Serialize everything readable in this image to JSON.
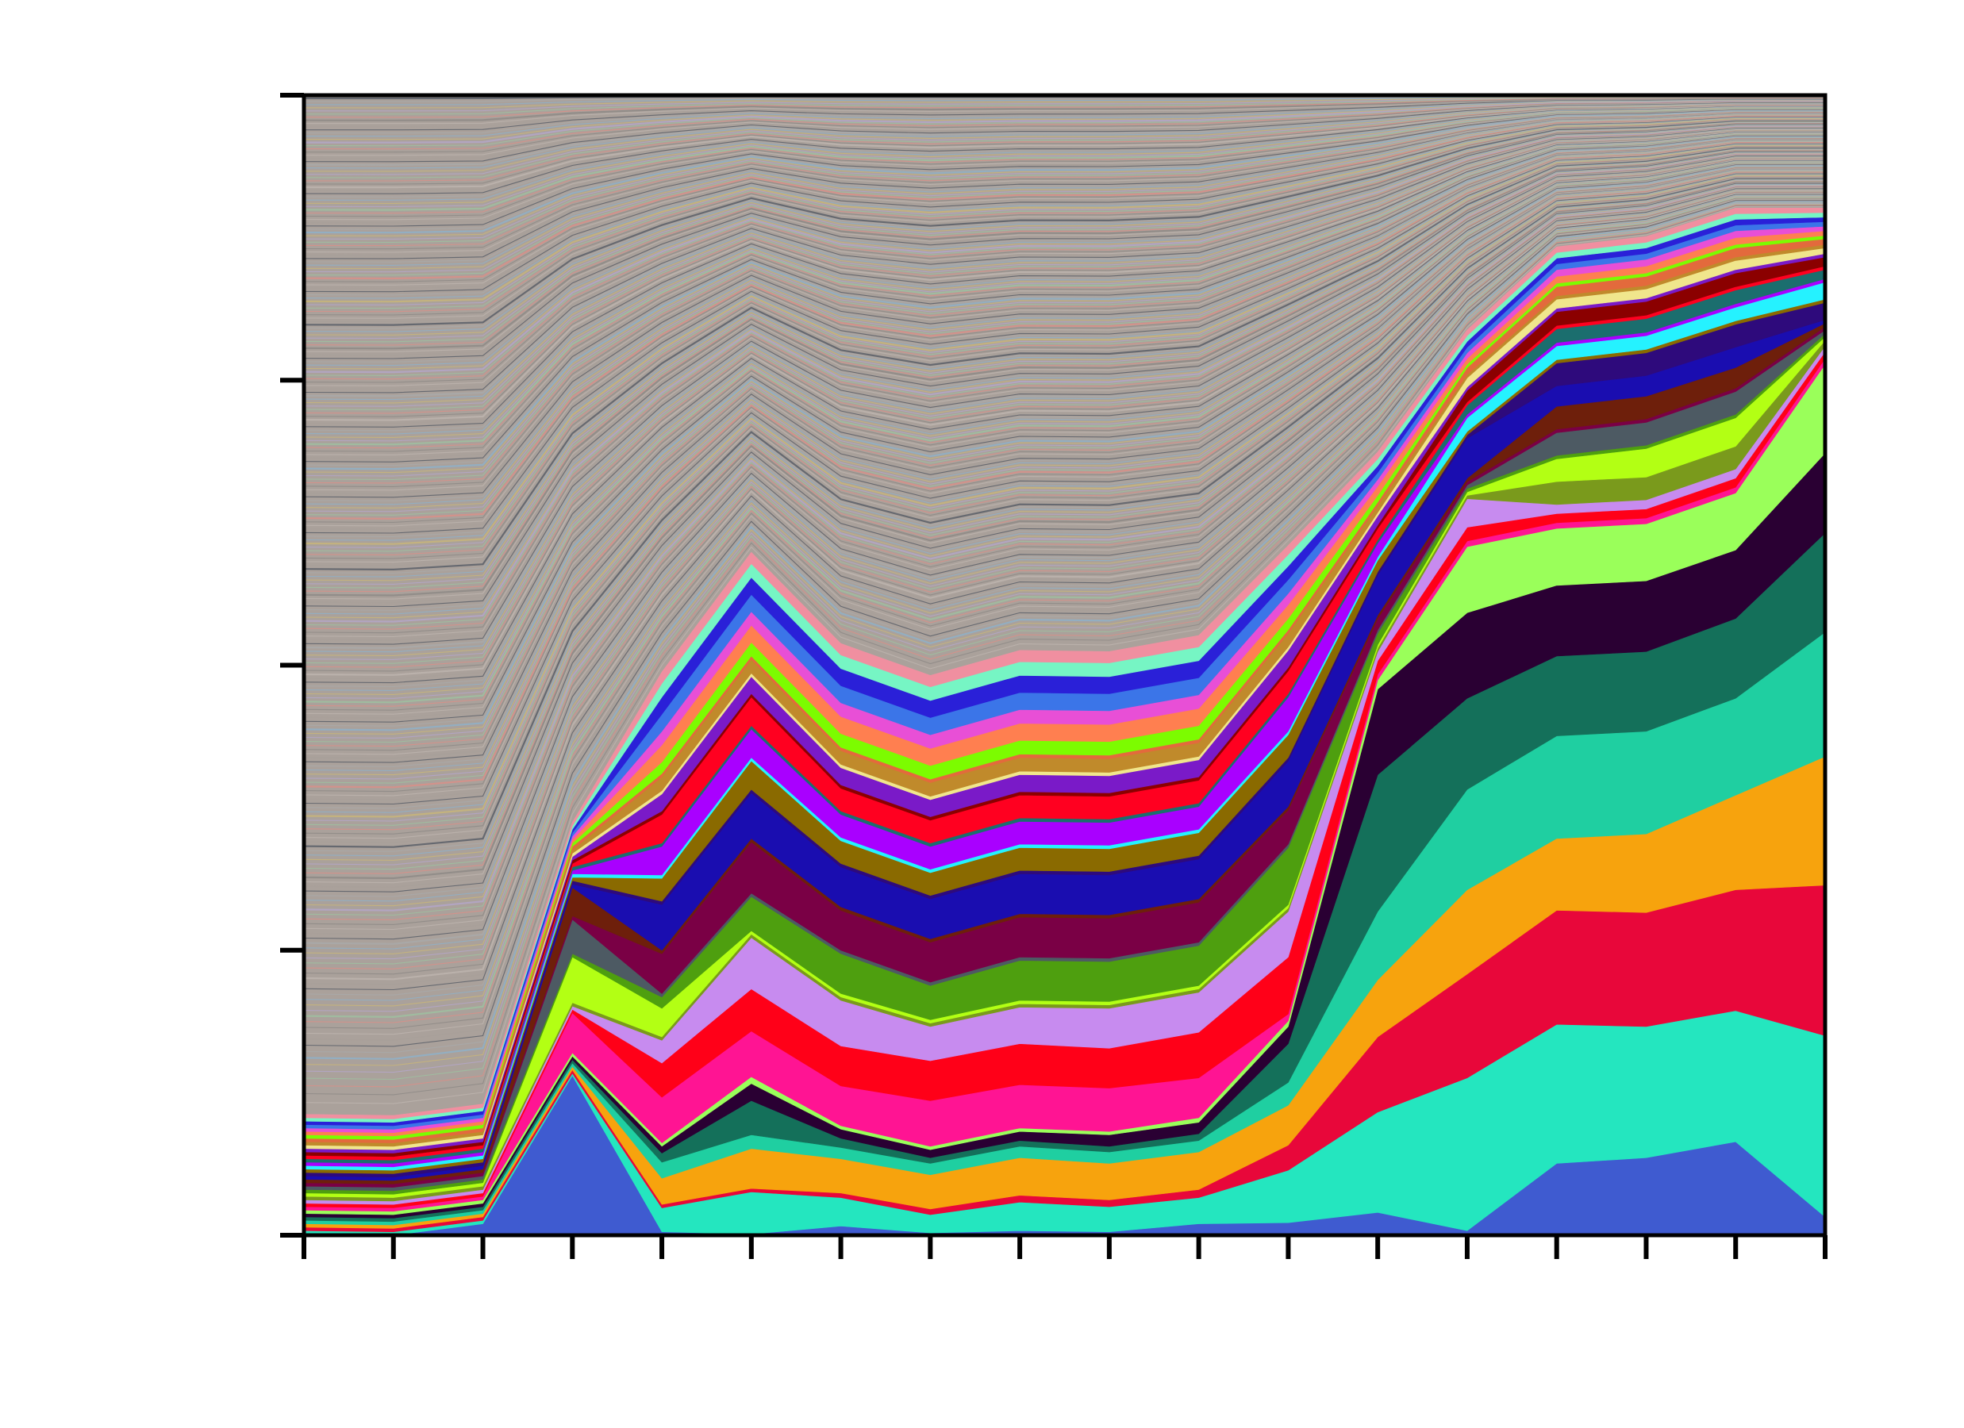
{
  "chart_data": {
    "type": "area",
    "stacked": true,
    "normalized": true,
    "title": "",
    "xlabel": "",
    "ylabel": "",
    "x": [
      0,
      1,
      2,
      3,
      4,
      5,
      6,
      7,
      8,
      9,
      10,
      11,
      12,
      13,
      14,
      15,
      16,
      17
    ],
    "ylim": [
      0,
      1
    ],
    "y_ticks": [
      0,
      0.25,
      0.5,
      0.75,
      1.0
    ],
    "grid": false,
    "legend": "none",
    "series": [
      {
        "color": "#3f5bd0",
        "values": [
          0,
          0,
          0.01,
          0.14,
          0.003,
          0.001,
          0.008,
          0.002,
          0.004,
          0.003,
          0.01,
          0.011,
          0.02,
          0.004,
          0.063,
          0.068,
          0.082,
          0.016
        ]
      },
      {
        "color": "#24e6bf",
        "values": [
          0.004,
          0.003,
          0.003,
          0.002,
          0.021,
          0.037,
          0.025,
          0.016,
          0.025,
          0.022,
          0.023,
          0.046,
          0.088,
          0.134,
          0.122,
          0.115,
          0.115,
          0.159
        ]
      },
      {
        "color": "#e8073a",
        "values": [
          0.003,
          0.003,
          0.003,
          0.003,
          0.003,
          0.003,
          0.004,
          0.005,
          0.006,
          0.006,
          0.007,
          0.022,
          0.066,
          0.091,
          0.1,
          0.1,
          0.106,
          0.132
        ]
      },
      {
        "color": "#f7a30d",
        "values": [
          0.003,
          0.003,
          0.003,
          0.003,
          0.023,
          0.035,
          0.03,
          0.03,
          0.033,
          0.032,
          0.033,
          0.035,
          0.05,
          0.074,
          0.063,
          0.069,
          0.083,
          0.113
        ]
      },
      {
        "color": "#1fcfa1",
        "values": [
          0.003,
          0.003,
          0.003,
          0.003,
          0.014,
          0.012,
          0.01,
          0.01,
          0.01,
          0.01,
          0.01,
          0.02,
          0.06,
          0.088,
          0.09,
          0.09,
          0.085,
          0.109
        ]
      },
      {
        "color": "#14705a",
        "values": [
          0.003,
          0.003,
          0.003,
          0.003,
          0.008,
          0.03,
          0.008,
          0.005,
          0.005,
          0.005,
          0.006,
          0.034,
          0.12,
          0.08,
          0.07,
          0.07,
          0.07,
          0.087
        ]
      },
      {
        "color": "#2a0033",
        "values": [
          0.003,
          0.003,
          0.003,
          0.003,
          0.006,
          0.015,
          0.008,
          0.007,
          0.008,
          0.01,
          0.01,
          0.015,
          0.075,
          0.075,
          0.062,
          0.062,
          0.06,
          0.07
        ]
      },
      {
        "color": "#9aff5a",
        "values": [
          0.003,
          0.003,
          0.003,
          0.003,
          0.003,
          0.006,
          0.003,
          0.003,
          0.003,
          0.003,
          0.004,
          0.005,
          0.008,
          0.058,
          0.05,
          0.05,
          0.05,
          0.078
        ]
      },
      {
        "color": "#ff1493",
        "values": [
          0.003,
          0.003,
          0.003,
          0.035,
          0.04,
          0.04,
          0.035,
          0.04,
          0.038,
          0.038,
          0.035,
          0.006,
          0.005,
          0.005,
          0.005,
          0.005,
          0.005,
          0.005
        ]
      },
      {
        "color": "#ff0018",
        "values": [
          0.003,
          0.003,
          0.003,
          0.003,
          0.03,
          0.037,
          0.035,
          0.035,
          0.036,
          0.035,
          0.04,
          0.05,
          0.012,
          0.012,
          0.008,
          0.008,
          0.008,
          0.006
        ]
      },
      {
        "color": "#c78bef",
        "values": [
          0.003,
          0.003,
          0.003,
          0.003,
          0.02,
          0.045,
          0.04,
          0.03,
          0.032,
          0.035,
          0.035,
          0.04,
          0.008,
          0.025,
          0.008,
          0.008,
          0.008,
          0.005
        ]
      },
      {
        "color": "#7a9a1c",
        "values": [
          0.003,
          0.003,
          0.003,
          0.003,
          0.003,
          0.003,
          0.003,
          0.003,
          0.003,
          0.003,
          0.003,
          0.003,
          0.003,
          0.003,
          0.02,
          0.02,
          0.02,
          0.005
        ]
      },
      {
        "color": "#b3ff14",
        "values": [
          0.003,
          0.003,
          0.003,
          0.04,
          0.025,
          0.003,
          0.003,
          0.003,
          0.003,
          0.003,
          0.003,
          0.003,
          0.003,
          0.003,
          0.02,
          0.025,
          0.025,
          0.003
        ]
      },
      {
        "color": "#4e9f0f",
        "values": [
          0.003,
          0.003,
          0.003,
          0.003,
          0.01,
          0.03,
          0.035,
          0.03,
          0.035,
          0.035,
          0.035,
          0.05,
          0.01,
          0.003,
          0.003,
          0.003,
          0.003,
          0.003
        ]
      },
      {
        "color": "#4d5a63",
        "values": [
          0.003,
          0.003,
          0.003,
          0.03,
          0.003,
          0.003,
          0.003,
          0.003,
          0.003,
          0.003,
          0.003,
          0.003,
          0.003,
          0.003,
          0.02,
          0.02,
          0.02,
          0.003
        ]
      },
      {
        "color": "#7a0045",
        "values": [
          0.003,
          0.003,
          0.003,
          0.003,
          0.035,
          0.045,
          0.035,
          0.035,
          0.035,
          0.035,
          0.035,
          0.03,
          0.01,
          0.003,
          0.003,
          0.003,
          0.003,
          0.003
        ]
      },
      {
        "color": "#6e1f0b",
        "values": [
          0.003,
          0.003,
          0.003,
          0.025,
          0.003,
          0.003,
          0.003,
          0.003,
          0.003,
          0.003,
          0.003,
          0.003,
          0.003,
          0.003,
          0.02,
          0.02,
          0.018,
          0.003
        ]
      },
      {
        "color": "#1a0db0",
        "values": [
          0.003,
          0.003,
          0.003,
          0.003,
          0.04,
          0.04,
          0.035,
          0.035,
          0.035,
          0.035,
          0.035,
          0.04,
          0.035,
          0.035,
          0.018,
          0.018,
          0.018,
          0.003
        ]
      },
      {
        "color": "#2e0a7c",
        "values": [
          0.003,
          0.003,
          0.003,
          0.003,
          0.003,
          0.003,
          0.003,
          0.003,
          0.003,
          0.003,
          0.003,
          0.003,
          0.003,
          0.003,
          0.02,
          0.02,
          0.02,
          0.015
        ]
      },
      {
        "color": "#8a6a00",
        "values": [
          0.003,
          0.003,
          0.003,
          0.003,
          0.02,
          0.025,
          0.02,
          0.02,
          0.02,
          0.02,
          0.02,
          0.02,
          0.01,
          0.003,
          0.003,
          0.003,
          0.003,
          0.003
        ]
      },
      {
        "color": "#25f2ff",
        "values": [
          0.003,
          0.003,
          0.003,
          0.003,
          0.003,
          0.003,
          0.003,
          0.003,
          0.003,
          0.003,
          0.003,
          0.003,
          0.003,
          0.012,
          0.012,
          0.012,
          0.012,
          0.015
        ]
      },
      {
        "color": "#a900ff",
        "values": [
          0.003,
          0.003,
          0.003,
          0.003,
          0.025,
          0.025,
          0.02,
          0.02,
          0.02,
          0.02,
          0.02,
          0.03,
          0.012,
          0.003,
          0.003,
          0.003,
          0.003,
          0.003
        ]
      },
      {
        "color": "#1b6e6e",
        "values": [
          0.003,
          0.003,
          0.003,
          0.003,
          0.003,
          0.003,
          0.003,
          0.003,
          0.003,
          0.003,
          0.003,
          0.003,
          0.003,
          0.008,
          0.012,
          0.012,
          0.012,
          0.008
        ]
      },
      {
        "color": "#ff0020",
        "values": [
          0.003,
          0.003,
          0.003,
          0.003,
          0.025,
          0.025,
          0.02,
          0.02,
          0.02,
          0.02,
          0.02,
          0.02,
          0.01,
          0.003,
          0.003,
          0.003,
          0.003,
          0.003
        ]
      },
      {
        "color": "#8b0000",
        "values": [
          0.003,
          0.003,
          0.003,
          0.003,
          0.003,
          0.003,
          0.003,
          0.003,
          0.003,
          0.003,
          0.003,
          0.003,
          0.003,
          0.01,
          0.012,
          0.012,
          0.012,
          0.008
        ]
      },
      {
        "color": "#7a1ac8",
        "values": [
          0.003,
          0.003,
          0.003,
          0.003,
          0.015,
          0.015,
          0.015,
          0.015,
          0.015,
          0.015,
          0.015,
          0.015,
          0.008,
          0.003,
          0.003,
          0.003,
          0.003,
          0.003
        ]
      },
      {
        "color": "#f0e68c",
        "values": [
          0.003,
          0.003,
          0.003,
          0.003,
          0.003,
          0.003,
          0.003,
          0.003,
          0.003,
          0.003,
          0.003,
          0.003,
          0.003,
          0.008,
          0.008,
          0.008,
          0.008,
          0.005
        ]
      },
      {
        "color": "#c08a2b",
        "values": [
          0.003,
          0.003,
          0.003,
          0.003,
          0.012,
          0.012,
          0.012,
          0.012,
          0.012,
          0.012,
          0.012,
          0.012,
          0.006,
          0.003,
          0.003,
          0.003,
          0.003,
          0.003
        ]
      },
      {
        "color": "#e36a3c",
        "values": [
          0.003,
          0.003,
          0.003,
          0.003,
          0.003,
          0.003,
          0.003,
          0.003,
          0.003,
          0.003,
          0.003,
          0.003,
          0.003,
          0.006,
          0.008,
          0.008,
          0.008,
          0.005
        ]
      },
      {
        "color": "#7cfc00",
        "values": [
          0.003,
          0.003,
          0.003,
          0.003,
          0.01,
          0.012,
          0.012,
          0.012,
          0.012,
          0.012,
          0.012,
          0.01,
          0.006,
          0.003,
          0.003,
          0.003,
          0.003,
          0.003
        ]
      },
      {
        "color": "#ff7f50",
        "values": [
          0.003,
          0.003,
          0.003,
          0.003,
          0.015,
          0.015,
          0.015,
          0.015,
          0.015,
          0.015,
          0.015,
          0.012,
          0.008,
          0.005,
          0.006,
          0.006,
          0.006,
          0.004
        ]
      },
      {
        "color": "#e84fd6",
        "values": [
          0.003,
          0.003,
          0.003,
          0.003,
          0.012,
          0.012,
          0.012,
          0.012,
          0.012,
          0.012,
          0.012,
          0.01,
          0.006,
          0.005,
          0.006,
          0.006,
          0.006,
          0.004
        ]
      },
      {
        "color": "#3b75e8",
        "values": [
          0.003,
          0.003,
          0.003,
          0.003,
          0.015,
          0.015,
          0.015,
          0.015,
          0.015,
          0.015,
          0.015,
          0.012,
          0.006,
          0.005,
          0.005,
          0.005,
          0.005,
          0.004
        ]
      },
      {
        "color": "#2a20d8",
        "values": [
          0.003,
          0.003,
          0.003,
          0.003,
          0.015,
          0.015,
          0.015,
          0.015,
          0.015,
          0.015,
          0.015,
          0.012,
          0.006,
          0.005,
          0.005,
          0.005,
          0.005,
          0.004
        ]
      },
      {
        "color": "#76f5c4",
        "values": [
          0.003,
          0.003,
          0.003,
          0.003,
          0.012,
          0.012,
          0.012,
          0.012,
          0.012,
          0.012,
          0.012,
          0.01,
          0.006,
          0.005,
          0.005,
          0.005,
          0.005,
          0.004
        ]
      },
      {
        "color": "#f08fa0",
        "values": [
          0.003,
          0.003,
          0.003,
          0.003,
          0.01,
          0.01,
          0.01,
          0.01,
          0.01,
          0.01,
          0.01,
          0.008,
          0.006,
          0.005,
          0.005,
          0.005,
          0.005,
          0.004
        ]
      }
    ],
    "background_band": {
      "description_colors": [
        "#a8a09a",
        "#bdb4ae",
        "#8e8a86",
        "#d98f88",
        "#9fbfa0",
        "#b4a6c8",
        "#c8b57a",
        "#8fb0c8",
        "#a9a9a9",
        "#5a5f68"
      ],
      "stripes": 260
    }
  }
}
